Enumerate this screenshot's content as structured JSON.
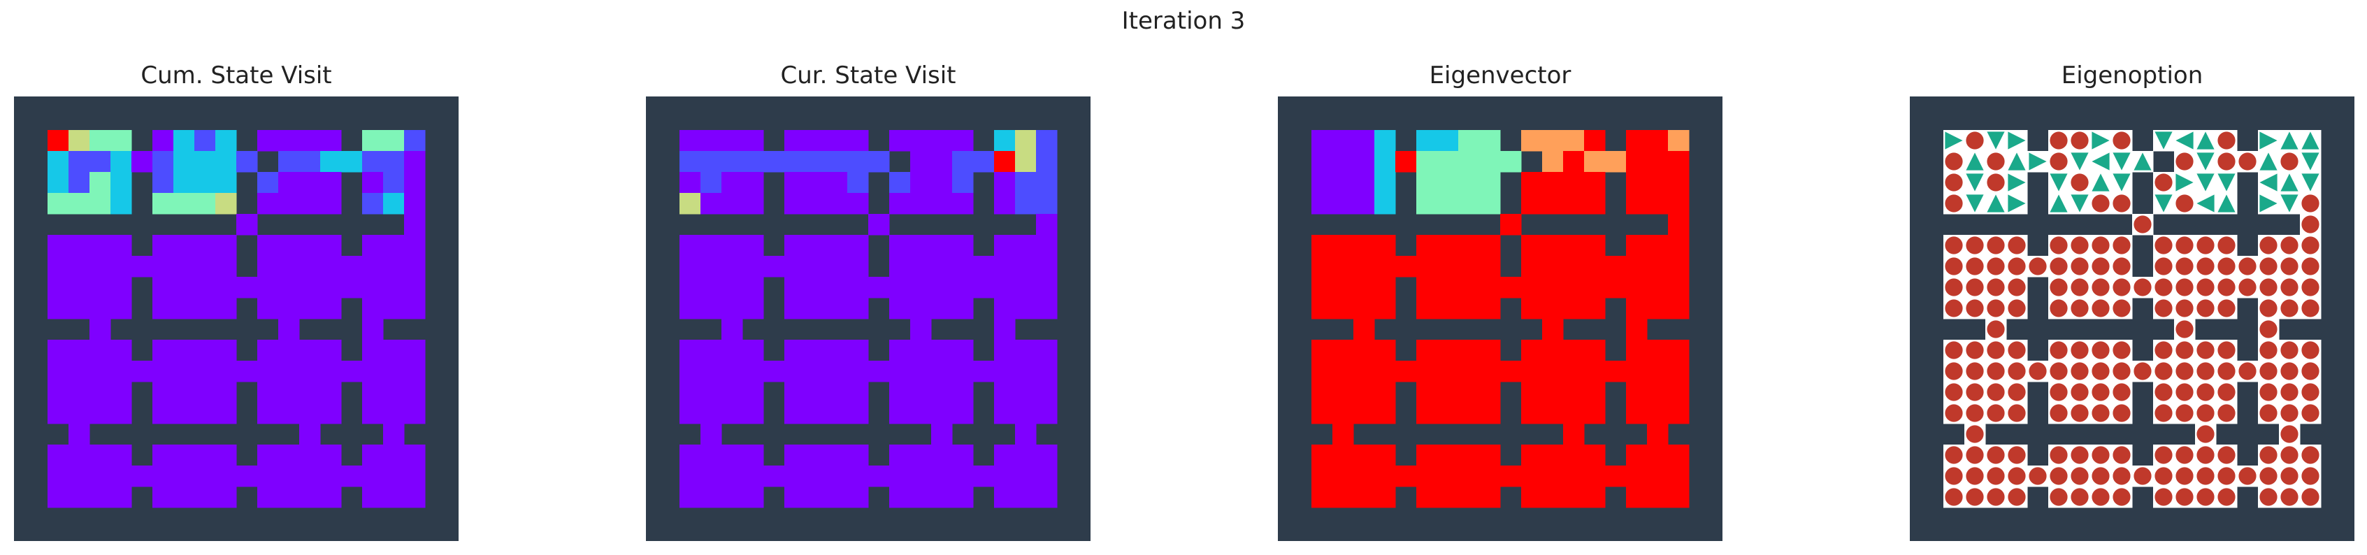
{
  "figure": {
    "suptitle": "Iteration 3"
  },
  "colors": {
    "wall": "#2e3c4b",
    "floor_white": "#ffffff",
    "violet": "#7f00ff",
    "red": "#ff0000",
    "option_teal": "#1aa98a",
    "option_red": "#c0392b"
  },
  "panels": [
    {
      "title": "Cum. State Visit",
      "kind": "heatmap"
    },
    {
      "title": "Cur. State Visit",
      "kind": "heatmap"
    },
    {
      "title": "Eigenvector",
      "kind": "heatmap"
    },
    {
      "title": "Eigenoption",
      "kind": "option"
    }
  ],
  "grid": {
    "rows": 20,
    "cols": 20,
    "layout": [
      "####################",
      "#....#....#....#...#",
      "#..........#.......#",
      "#....#....#....#...#",
      "#....#....#....#...#",
      "##########.#######.#",
      "#....#....#....#...#",
      "#.........#........#",
      "#....#.............#",
      "#....#....#....#...#",
      "###.########.###.###",
      "#....#....#....#...#",
      "#..................#",
      "#....#....#....#...#",
      "#....#....#....#...#",
      "##.##########.###.##",
      "#....#....#....#...#",
      "#..................#",
      "#....#....#....#...#",
      "####################"
    ],
    "heat_rows": [
      [
        "..............................",
        ".ryyggg...cbbccg....vvrggggbb.",
        ".ccbbcc..bccccbbbbbbbccgbbcvb.",
        ".cbbgcc..bcccccbbvvvvvbbvbvvb.",
        ".ggggcc..ggggyy.vvvvvvbbbcvvb."
      ],
      [
        "..............................",
        ".vvvvvv..vvvvvvvvvvvvvbgcycbb.",
        ".bbbbbbbbbbbbbbbbvvvvbbgrybbb.",
        ".vbbvvv..vvvvbbbbvvvbbbbvbbbb.",
        ".yyvvvv..vvvvvvvvvvvvvbbvbvby."
      ],
      [
        "..............................",
        ".vvvvcc..cccgggoooooo.rrrroor.",
        ".vvvvcc..gggggggrrorroorrrrrr.",
        ".vvvvcc..gggggggrrrrrroorrrrr.",
        ".vvvvcc..gggggggrrrrrroorrrrr."
      ]
    ],
    "heat_palette": {
      "v": "#7f00ff",
      "b": "#4d4dff",
      "c": "#16c8e8",
      "g": "#7ff5b8",
      "y": "#c8dc82",
      "o": "#ffa05a",
      "r": "#ff0000"
    },
    "option_arrows": [
      "ARTDRUTARTUDLUTDRUUR",
      "DTUAURTDLDUUTDTAUTDU",
      "RTDARDDTUDDTRDDRLUDR",
      "UTDURDUDTTUDTLUTRDTA"
    ]
  }
}
